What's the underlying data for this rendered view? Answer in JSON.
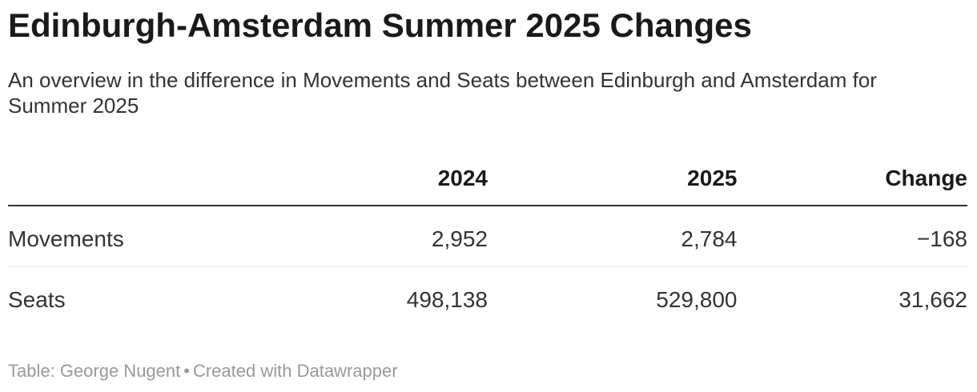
{
  "header": {
    "title": "Edinburgh-Amsterdam Summer 2025 Changes",
    "subtitle": "An overview in the difference in Movements and Seats between Edinburgh and Amsterdam for Summer 2025"
  },
  "table": {
    "columns": [
      "",
      "2024",
      "2025",
      "Change"
    ],
    "rows": [
      {
        "label": "Movements",
        "values": [
          "2,952",
          "2,784",
          "−168"
        ]
      },
      {
        "label": "Seats",
        "values": [
          "498,138",
          "529,800",
          "31,662"
        ]
      }
    ]
  },
  "footer": {
    "byline": "Table: George Nugent",
    "separator": "•",
    "credit": "Created with Datawrapper"
  },
  "colors": {
    "title_text": "#1a1a1a",
    "body_text": "#333333",
    "header_border": "#333333",
    "row_divider": "#e8e8e8",
    "footer_text": "#999999",
    "background": "#ffffff"
  },
  "chart_data": {
    "type": "table",
    "title": "Edinburgh-Amsterdam Summer 2025 Changes",
    "subtitle": "An overview in the difference in Movements and Seats between Edinburgh and Amsterdam for Summer 2025",
    "categories": [
      "Movements",
      "Seats"
    ],
    "columns": [
      "2024",
      "2025",
      "Change"
    ],
    "series": [
      {
        "name": "2024",
        "values": [
          2952,
          498138
        ]
      },
      {
        "name": "2025",
        "values": [
          2784,
          529800
        ]
      },
      {
        "name": "Change",
        "values": [
          -168,
          31662
        ]
      }
    ],
    "footnote": "Table: George Nugent • Created with Datawrapper"
  }
}
